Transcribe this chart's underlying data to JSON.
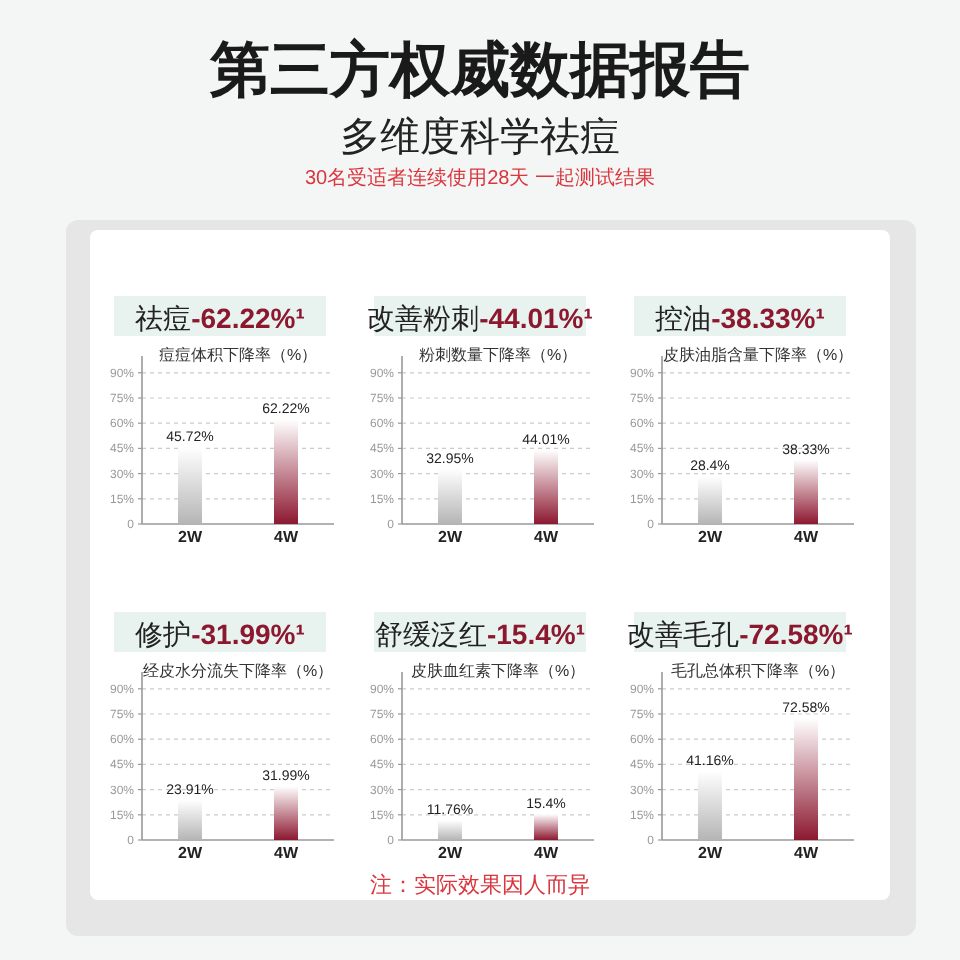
{
  "chart_data": [
    {
      "type": "other",
      "title": "第三方权威数据报告",
      "subtitle": "多维度科学祛痘",
      "annotations": [
        "30名受适者连续使用28天 一起测试结果"
      ]
    },
    {
      "type": "bar",
      "title": "祛痘-62.22%¹",
      "ylabel": "痘痘体积下降率（%）",
      "categories": [
        "2W",
        "4W"
      ],
      "values": [
        45.72,
        62.22
      ],
      "value_labels": [
        "45.72%",
        "62.22%"
      ],
      "colors": [
        "#b5b5b5",
        "#8c1830"
      ],
      "ylim": [
        0,
        100
      ],
      "yticks": [
        {
          "value": 0,
          "label": "0"
        },
        {
          "value": 15,
          "label": "15%"
        },
        {
          "value": 30,
          "label": "30%"
        },
        {
          "value": 45,
          "label": "45%"
        },
        {
          "value": 60,
          "label": "60%"
        },
        {
          "value": 75,
          "label": "75%"
        },
        {
          "value": 90,
          "label": "90%"
        }
      ],
      "grid": "y"
    },
    {
      "type": "bar",
      "title": "改善粉刺-44.01%¹",
      "ylabel": "粉刺数量下降率（%）",
      "categories": [
        "2W",
        "4W"
      ],
      "values": [
        32.95,
        44.01
      ],
      "value_labels": [
        "32.95%",
        "44.01%"
      ],
      "colors": [
        "#b5b5b5",
        "#8c1830"
      ],
      "ylim": [
        0,
        100
      ],
      "yticks": [
        {
          "value": 0,
          "label": "0"
        },
        {
          "value": 15,
          "label": "15%"
        },
        {
          "value": 30,
          "label": "30%"
        },
        {
          "value": 45,
          "label": "45%"
        },
        {
          "value": 60,
          "label": "60%"
        },
        {
          "value": 75,
          "label": "75%"
        },
        {
          "value": 90,
          "label": "90%"
        }
      ],
      "grid": "y"
    },
    {
      "type": "bar",
      "title": "控油-38.33%¹",
      "ylabel": "皮肤油脂含量下降率（%）",
      "categories": [
        "2W",
        "4W"
      ],
      "values": [
        28.4,
        38.33
      ],
      "value_labels": [
        "28.4%",
        "38.33%"
      ],
      "colors": [
        "#b5b5b5",
        "#8c1830"
      ],
      "ylim": [
        0,
        100
      ],
      "yticks": [
        {
          "value": 0,
          "label": "0"
        },
        {
          "value": 15,
          "label": "15%"
        },
        {
          "value": 30,
          "label": "30%"
        },
        {
          "value": 45,
          "label": "45%"
        },
        {
          "value": 60,
          "label": "60%"
        },
        {
          "value": 75,
          "label": "75%"
        },
        {
          "value": 90,
          "label": "90%"
        }
      ],
      "grid": "y"
    },
    {
      "type": "bar",
      "title": "修护-31.99%¹",
      "ylabel": "经皮水分流失下降率（%）",
      "categories": [
        "2W",
        "4W"
      ],
      "values": [
        23.91,
        31.99
      ],
      "value_labels": [
        "23.91%",
        "31.99%"
      ],
      "colors": [
        "#b5b5b5",
        "#8c1830"
      ],
      "ylim": [
        0,
        100
      ],
      "yticks": [
        {
          "value": 0,
          "label": "0"
        },
        {
          "value": 15,
          "label": "15%"
        },
        {
          "value": 30,
          "label": "30%"
        },
        {
          "value": 45,
          "label": "45%"
        },
        {
          "value": 60,
          "label": "60%"
        },
        {
          "value": 75,
          "label": "75%"
        },
        {
          "value": 90,
          "label": "90%"
        }
      ],
      "grid": "y"
    },
    {
      "type": "bar",
      "title": "舒缓泛红-15.4%¹",
      "ylabel": "皮肤血红素下降率（%）",
      "categories": [
        "2W",
        "4W"
      ],
      "values": [
        11.76,
        15.4
      ],
      "value_labels": [
        "11.76%",
        "15.4%"
      ],
      "colors": [
        "#b5b5b5",
        "#8c1830"
      ],
      "ylim": [
        0,
        100
      ],
      "yticks": [
        {
          "value": 0,
          "label": "0"
        },
        {
          "value": 15,
          "label": "15%"
        },
        {
          "value": 30,
          "label": "30%"
        },
        {
          "value": 45,
          "label": "45%"
        },
        {
          "value": 60,
          "label": "60%"
        },
        {
          "value": 75,
          "label": "75%"
        },
        {
          "value": 90,
          "label": "90%"
        }
      ],
      "grid": "y"
    },
    {
      "type": "bar",
      "title": "改善毛孔-72.58%¹",
      "ylabel": "毛孔总体积下降率（%）",
      "categories": [
        "2W",
        "4W"
      ],
      "values": [
        41.16,
        72.58
      ],
      "value_labels": [
        "41.16%",
        "72.58%"
      ],
      "colors": [
        "#b5b5b5",
        "#8c1830"
      ],
      "ylim": [
        0,
        100
      ],
      "yticks": [
        {
          "value": 0,
          "label": "0"
        },
        {
          "value": 15,
          "label": "15%"
        },
        {
          "value": 30,
          "label": "30%"
        },
        {
          "value": 45,
          "label": "45%"
        },
        {
          "value": 60,
          "label": "60%"
        },
        {
          "value": 75,
          "label": "75%"
        },
        {
          "value": 90,
          "label": "90%"
        }
      ],
      "grid": "y"
    },
    {
      "type": "other",
      "annotations": [
        "注：实际效果因人而异"
      ]
    }
  ]
}
